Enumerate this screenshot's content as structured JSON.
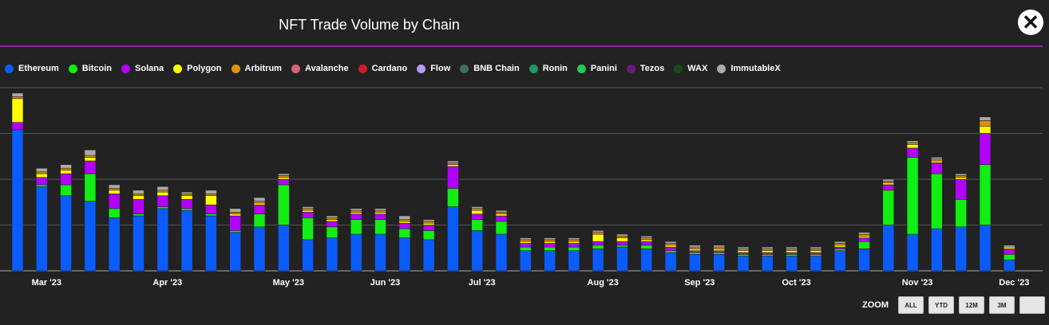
{
  "header": {
    "title": "NFT Trade Volume by Chain",
    "close_icon": "close-icon"
  },
  "legend": [
    {
      "label": "Ethereum",
      "color": "#0a5cff"
    },
    {
      "label": "Bitcoin",
      "color": "#11ee11"
    },
    {
      "label": "Solana",
      "color": "#b300ff"
    },
    {
      "label": "Polygon",
      "color": "#ffff00"
    },
    {
      "label": "Arbitrum",
      "color": "#e0900a"
    },
    {
      "label": "Avalanche",
      "color": "#d9647a"
    },
    {
      "label": "Cardano",
      "color": "#d11a2a"
    },
    {
      "label": "Flow",
      "color": "#b49cf0"
    },
    {
      "label": "BNB Chain",
      "color": "#3f6e58"
    },
    {
      "label": "Ronin",
      "color": "#1a9a66"
    },
    {
      "label": "Panini",
      "color": "#22c858"
    },
    {
      "label": "Tezos",
      "color": "#6a1a7a"
    },
    {
      "label": "WAX",
      "color": "#1a4a1a"
    },
    {
      "label": "ImmutableX",
      "color": "#aaaaaa"
    }
  ],
  "zoom": {
    "label": "ZOOM",
    "buttons": [
      "ALL",
      "YTD",
      "12M",
      "3M",
      ""
    ]
  },
  "chart_data": {
    "type": "bar",
    "stacked": true,
    "grid": true,
    "x_tick_labels": [
      "Mar '23",
      "Apr '23",
      "May '23",
      "Jun '23",
      "Jul '23",
      "Aug '23",
      "Sep '23",
      "Oct '23",
      "Nov '23",
      "Dec '23"
    ],
    "x_tick_index": [
      1,
      6,
      11,
      15,
      19,
      24,
      28,
      32,
      37,
      41
    ],
    "ymax": 100,
    "series": [
      {
        "name": "Ethereum",
        "color": "#0a5cff",
        "values": [
          77,
          46,
          41,
          38,
          29,
          30,
          34,
          33,
          30,
          21,
          24,
          25,
          17,
          18,
          20,
          20,
          18,
          17,
          35,
          22,
          20,
          11,
          11,
          11,
          12,
          13,
          12,
          10,
          9,
          9,
          8,
          8,
          8,
          8,
          11,
          12,
          25,
          20,
          23,
          24,
          25,
          6
        ]
      },
      {
        "name": "Bitcoin",
        "color": "#11ee11",
        "values": [
          0,
          1,
          6,
          15,
          5,
          1,
          1,
          1,
          1,
          1,
          7,
          22,
          12,
          6,
          8,
          8,
          5,
          5,
          10,
          6,
          7,
          2,
          2,
          2,
          2,
          1,
          2,
          1,
          1,
          1,
          1,
          1,
          1,
          1,
          1,
          4,
          19,
          42,
          30,
          15,
          33,
          3
        ]
      },
      {
        "name": "Solana",
        "color": "#b300ff",
        "values": [
          4,
          4,
          6,
          7,
          8,
          8,
          6,
          5,
          5,
          8,
          5,
          3,
          3,
          3,
          3,
          3,
          3,
          3,
          12,
          3,
          3,
          2,
          2,
          2,
          2,
          2,
          2,
          2,
          1,
          1,
          1,
          1,
          1,
          1,
          1,
          2,
          3,
          5,
          6,
          11,
          17,
          3
        ]
      },
      {
        "name": "Polygon",
        "color": "#ffff00",
        "values": [
          13,
          2,
          2,
          2,
          2,
          2,
          2,
          2,
          5,
          1,
          1,
          1,
          1,
          1,
          1,
          1,
          1,
          1,
          1,
          2,
          1,
          1,
          1,
          1,
          4,
          2,
          1,
          1,
          1,
          1,
          1,
          1,
          1,
          1,
          1,
          1,
          1,
          2,
          1,
          1,
          4,
          1
        ]
      },
      {
        "name": "Arbitrum",
        "color": "#e0900a",
        "values": [
          1,
          1,
          1,
          1,
          1,
          1,
          1,
          1,
          1,
          1,
          1,
          1,
          1,
          1,
          1,
          1,
          1,
          1,
          1,
          1,
          1,
          1,
          1,
          1,
          1,
          1,
          1,
          1,
          1,
          1,
          1,
          1,
          1,
          1,
          1,
          1,
          1,
          1,
          1,
          1,
          3,
          0
        ]
      },
      {
        "name": "ImmutableX",
        "color": "#aaaaaa",
        "values": [
          2,
          2,
          2,
          3,
          2,
          2,
          2,
          1,
          2,
          2,
          2,
          1,
          1,
          1,
          1,
          1,
          2,
          1,
          1,
          1,
          1,
          1,
          1,
          1,
          1,
          1,
          1,
          1,
          1,
          1,
          1,
          1,
          1,
          1,
          1,
          1,
          1,
          1,
          1,
          1,
          2,
          1
        ]
      }
    ]
  }
}
